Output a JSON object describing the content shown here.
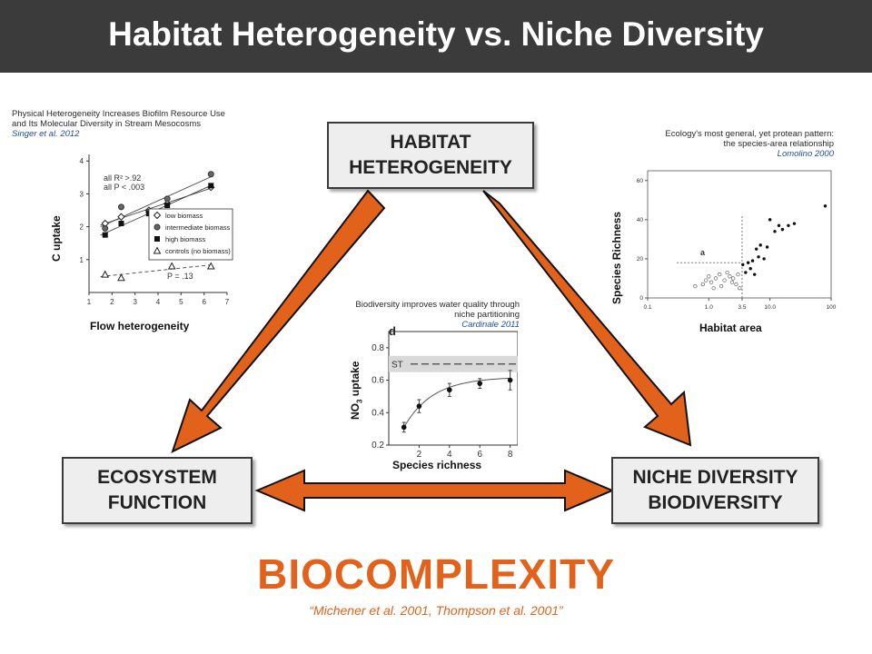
{
  "title": "Habitat Heterogeneity vs. Niche Diversity",
  "boxes": {
    "top": [
      "HABITAT",
      "HETEROGENEITY"
    ],
    "left": [
      "ECOSYSTEM",
      "FUNCTION"
    ],
    "right": [
      "NICHE DIVERSITY",
      "BIODIVERSITY"
    ]
  },
  "colors": {
    "arrow": "#e2621b",
    "header": "#3b3b3b",
    "accent_text": "#e2621b"
  },
  "panel_left": {
    "caption_lines": [
      "Physical Heterogeneity Increases Biofilm Resource Use",
      "and Its Molecular Diversity in Stream Mesocosms"
    ],
    "reference": "Singer et al. 2012",
    "ylabel": "C uptake",
    "xlabel": "Flow heterogeneity",
    "stats": [
      "all R² >.92",
      "all P < .003"
    ],
    "pstat": "P = .13",
    "legend": [
      "low biomass",
      "intermediate biomass",
      "high biomass",
      "controls (no biomass)"
    ],
    "xticks": [
      "1",
      "2",
      "3",
      "4",
      "5",
      "6",
      "7"
    ],
    "yticks": [
      "1",
      "2",
      "3",
      "4"
    ]
  },
  "panel_middle": {
    "caption_lines": [
      "Biodiversity improves water quality through",
      "niche partitioning"
    ],
    "reference": "Cardinale 2011",
    "panel_letter": "d",
    "st_label": "ST",
    "ylabel_main": "NO",
    "ylabel_sub": "3",
    "ylabel_rest": " uptake",
    "xlabel": "Species richness",
    "xticks": [
      "2",
      "4",
      "6",
      "8"
    ],
    "yticks": [
      "0.2",
      "0.4",
      "0.6",
      "0.8"
    ]
  },
  "panel_right": {
    "caption_lines": [
      "Ecology's most general, yet protean pattern:",
      "the species-area relationship"
    ],
    "reference": "Lomolino 2000",
    "ylabel": "Species Richness",
    "xlabel": "Habitat area",
    "annotation": "a",
    "xticks": [
      "0.1",
      "1.0",
      "3.5",
      "10.0",
      "100"
    ],
    "yticks": [
      "0",
      "20",
      "40",
      "60"
    ]
  },
  "chart_data": [
    {
      "type": "scatter",
      "xlabel": "Flow heterogeneity",
      "ylabel": "C uptake",
      "xlim": [
        1,
        7
      ],
      "ylim": [
        0,
        4.2
      ],
      "grid": false,
      "legend_position": "right",
      "series": [
        {
          "name": "low biomass",
          "x": [
            1.7,
            2.4,
            3.6,
            4.4,
            6.3
          ],
          "y": [
            2.1,
            2.3,
            2.5,
            2.7,
            3.2
          ]
        },
        {
          "name": "intermediate biomass",
          "x": [
            1.7,
            2.4,
            3.6,
            4.4,
            6.3
          ],
          "y": [
            1.95,
            2.6,
            2.45,
            2.85,
            3.6
          ]
        },
        {
          "name": "high biomass",
          "x": [
            1.7,
            2.4,
            3.6,
            4.4,
            6.3
          ],
          "y": [
            1.75,
            2.1,
            2.4,
            2.65,
            3.25
          ]
        },
        {
          "name": "controls (no biomass)",
          "x": [
            1.7,
            2.4,
            4.6,
            6.3
          ],
          "y": [
            0.55,
            0.45,
            0.8,
            0.8
          ]
        }
      ]
    },
    {
      "type": "line",
      "xlabel": "Species richness",
      "ylabel": "NO3 uptake",
      "xlim": [
        0,
        8.5
      ],
      "ylim": [
        0.2,
        0.9
      ],
      "reference_band": {
        "label": "ST",
        "y": [
          0.65,
          0.75
        ]
      },
      "series": [
        {
          "name": "",
          "x": [
            1,
            2,
            4,
            6,
            8
          ],
          "y": [
            0.31,
            0.44,
            0.54,
            0.58,
            0.6
          ],
          "err": [
            0.03,
            0.04,
            0.04,
            0.03,
            0.06
          ]
        }
      ]
    },
    {
      "type": "scatter",
      "xlabel": "Habitat area",
      "ylabel": "Species Richness",
      "xscale": "log",
      "xlim": [
        0.1,
        100
      ],
      "ylim": [
        0,
        65
      ],
      "series": [
        {
          "name": "",
          "marker": "open",
          "x": [
            0.6,
            0.8,
            0.9,
            1.0,
            1.1,
            1.3,
            1.5,
            1.8,
            2.0,
            2.2,
            2.5,
            2.8,
            3.0,
            1.2,
            1.6,
            2.4,
            3.2
          ],
          "y": [
            6,
            7,
            9,
            11,
            8,
            10,
            12,
            9,
            13,
            11,
            10,
            7,
            12,
            5,
            6,
            8,
            5
          ]
        },
        {
          "name": "",
          "marker": "filled",
          "x": [
            3.6,
            4.0,
            4.4,
            4.8,
            5.2,
            5.6,
            6.0,
            6.5,
            7.0,
            8.0,
            9.0,
            10.0,
            12.0,
            14.0,
            16.0,
            20.0,
            25.0,
            80.0
          ],
          "y": [
            17,
            13,
            18,
            15,
            19,
            12,
            25,
            21,
            27,
            20,
            26,
            40,
            34,
            37,
            35,
            37,
            38,
            47
          ]
        }
      ]
    }
  ],
  "footer": {
    "main": "BIOCOMPLEXITY",
    "citation": "“Michener et al. 2001, Thompson et al. 2001”"
  }
}
